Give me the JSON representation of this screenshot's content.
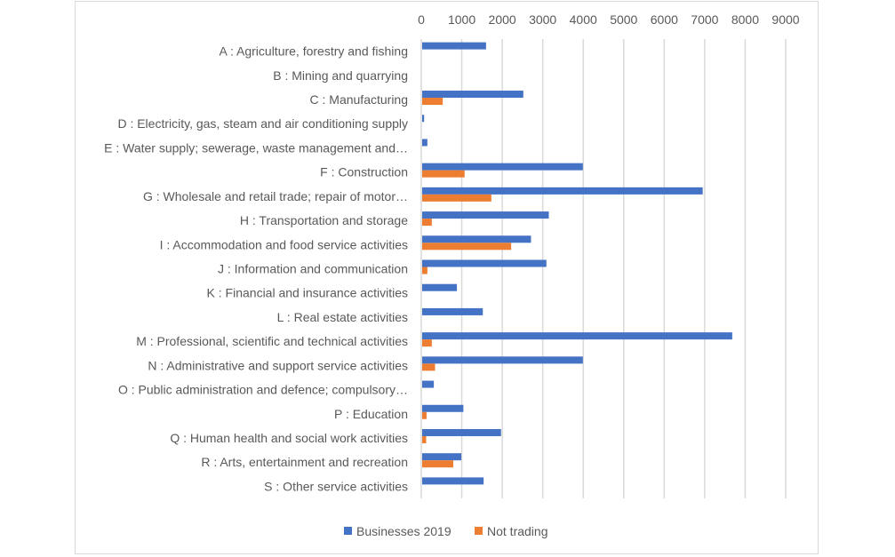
{
  "chart_data": {
    "type": "bar",
    "orientation": "horizontal",
    "title": "",
    "xlabel": "",
    "ylabel": "",
    "xlim": [
      0,
      9000
    ],
    "x_ticks": [
      "0",
      "1000",
      "2000",
      "3000",
      "4000",
      "5000",
      "6000",
      "7000",
      "8000",
      "9000"
    ],
    "x_axis_position": "top",
    "grid": true,
    "legend_position": "bottom",
    "categories": [
      "A : Agriculture, forestry and fishing",
      "B : Mining and quarrying",
      "C : Manufacturing",
      "D : Electricity, gas, steam and air conditioning supply",
      "E : Water supply; sewerage, waste management and…",
      "F : Construction",
      "G : Wholesale and retail trade; repair of motor…",
      "H : Transportation and storage",
      "I : Accommodation and food service activities",
      "J : Information and communication",
      "K : Financial and insurance activities",
      "L : Real estate activities",
      "M : Professional, scientific and technical activities",
      "N : Administrative and support service activities",
      "O : Public administration and defence; compulsory…",
      "P : Education",
      "Q : Human health and social work activities",
      "R : Arts, entertainment and recreation",
      "S : Other service activities"
    ],
    "series": [
      {
        "name": "Businesses 2019",
        "color": "#4472c4",
        "values": [
          1600,
          0,
          2520,
          70,
          150,
          3990,
          6950,
          3150,
          2710,
          3090,
          880,
          1520,
          7680,
          3990,
          310,
          1040,
          1970,
          990,
          1540
        ]
      },
      {
        "name": "Not trading",
        "color": "#ed7d31",
        "values": [
          0,
          0,
          530,
          0,
          0,
          1070,
          1730,
          260,
          2220,
          150,
          0,
          0,
          260,
          340,
          0,
          130,
          120,
          790,
          0
        ]
      }
    ]
  }
}
